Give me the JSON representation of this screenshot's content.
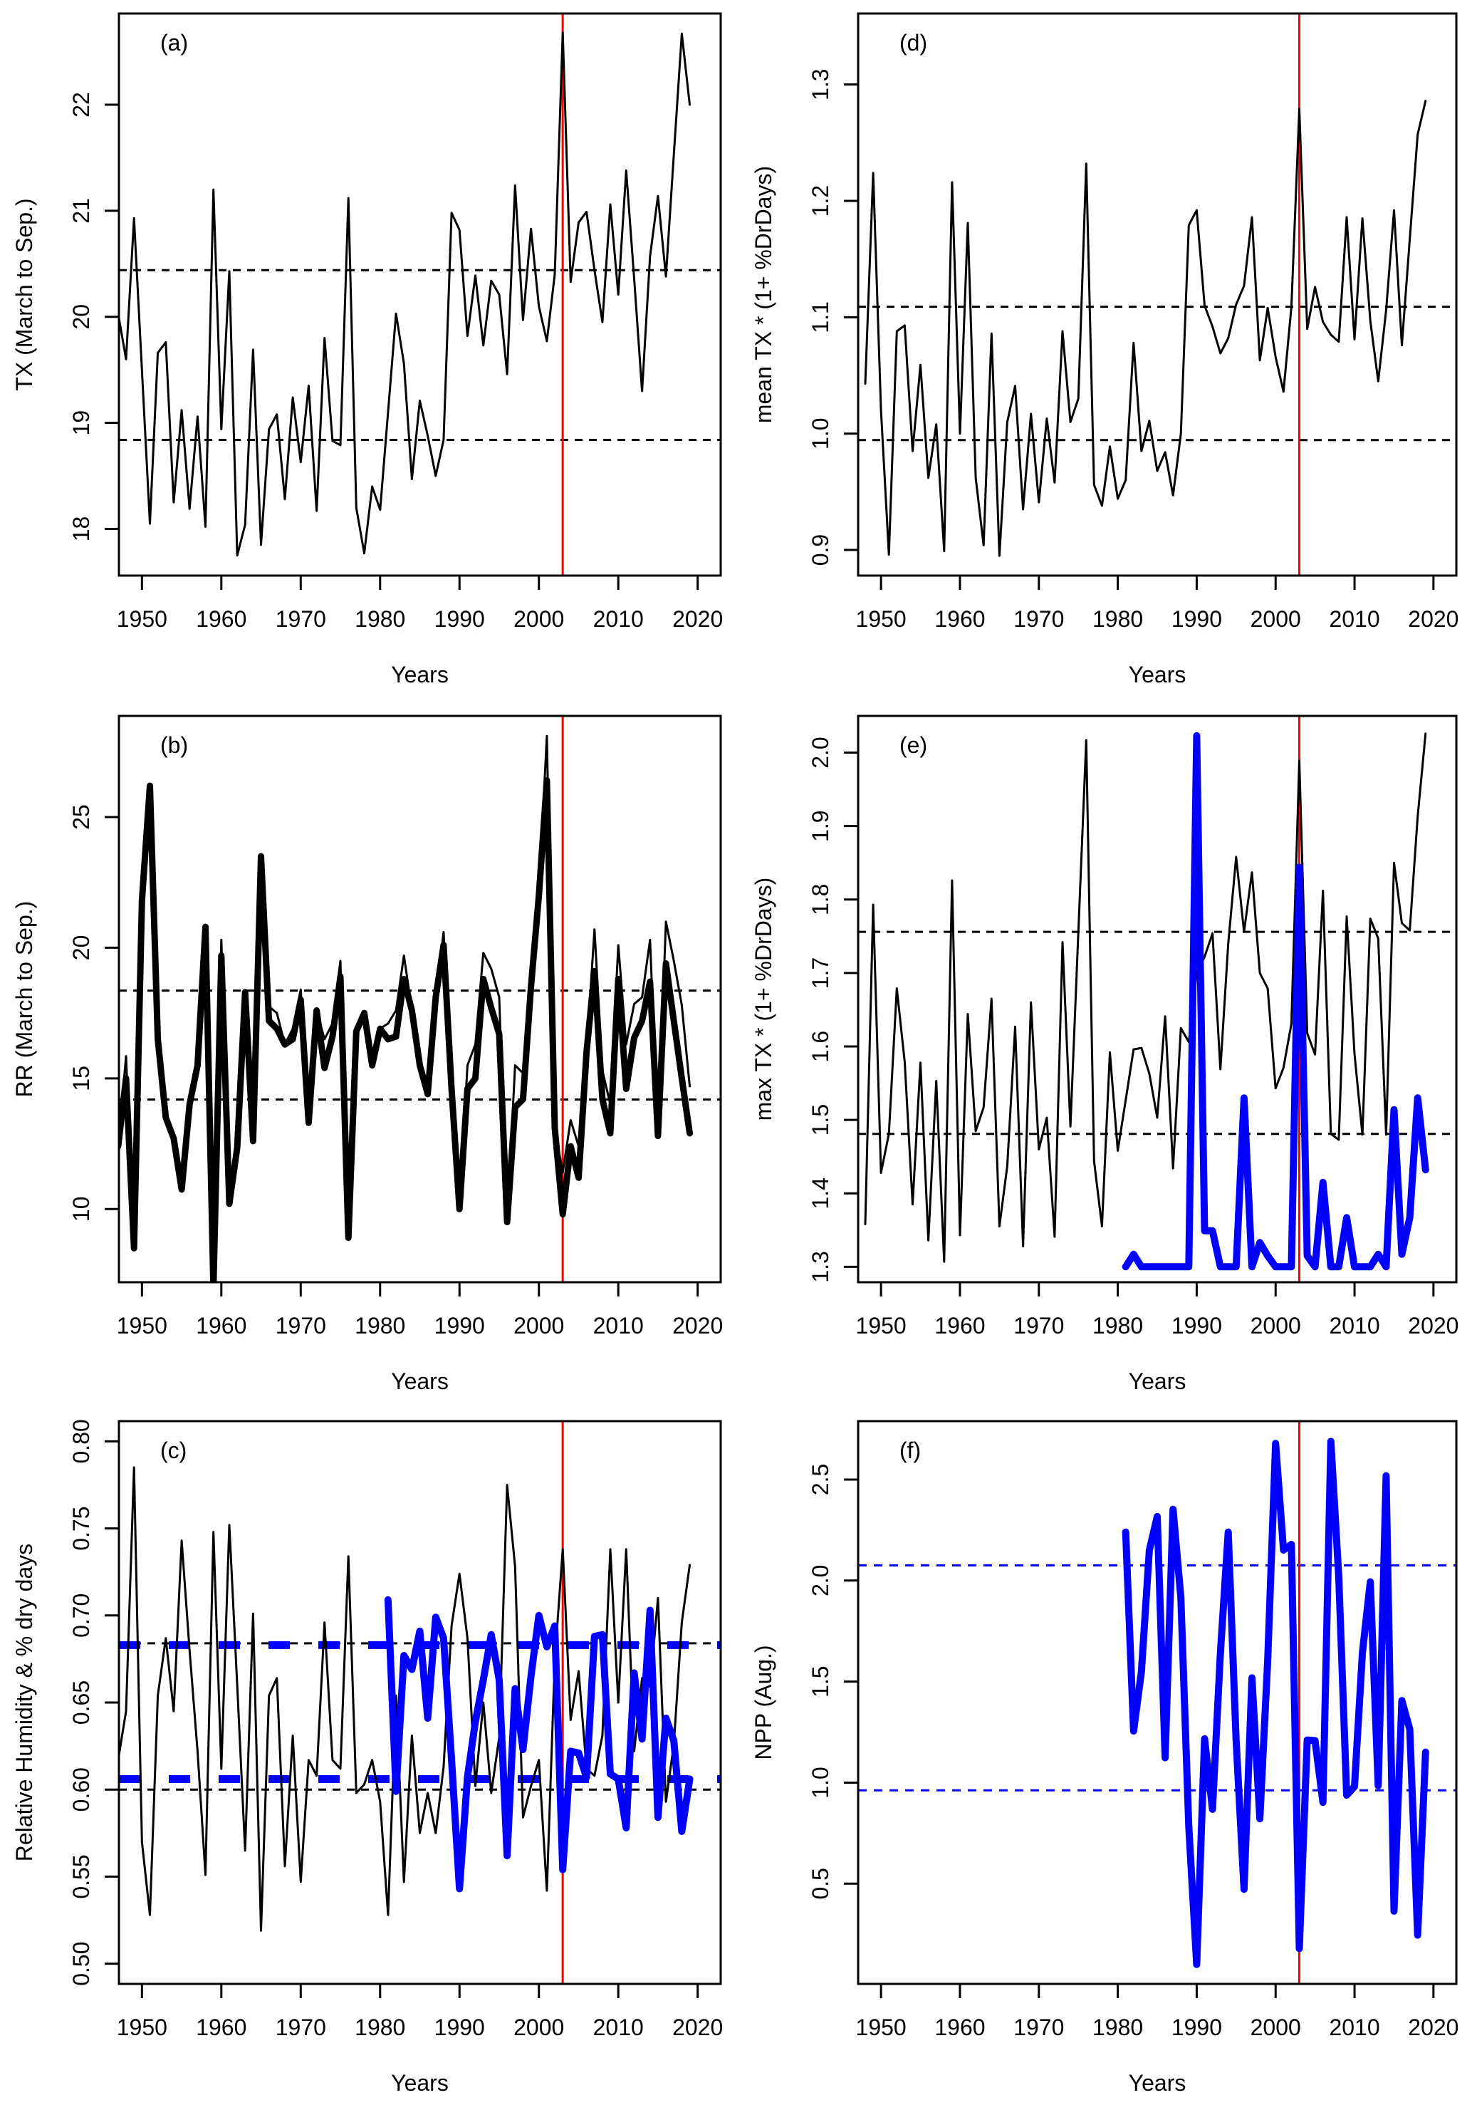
{
  "chart_data": [
    {
      "type": "line",
      "panel_label": "(a)",
      "xlabel": "Years",
      "ylabel": "TX (March to Sep.)",
      "xlim": [
        1947.1,
        2022.9
      ],
      "ylim": [
        17.56,
        22.86
      ],
      "xticks": [
        "1950",
        "1960",
        "1970",
        "1980",
        "1990",
        "2000",
        "2010",
        "2020"
      ],
      "yticks": [
        "18",
        "19",
        "20",
        "21",
        "22"
      ],
      "grid": false,
      "vline": {
        "x": 2003,
        "color": "#ff0000"
      },
      "hlines": [
        {
          "y": 20.44,
          "color": "#000000",
          "style": "dashed"
        },
        {
          "y": 18.84,
          "color": "#000000",
          "style": "dashed"
        }
      ],
      "series": [
        {
          "color": "#000000",
          "style": "thin",
          "x_start": 1947,
          "values": [
            20.03,
            19.6,
            20.93,
            19.5,
            18.05,
            19.66,
            19.76,
            18.25,
            19.12,
            18.19,
            19.06,
            18.02,
            21.2,
            18.94,
            20.43,
            17.75,
            18.04,
            19.69,
            17.85,
            18.94,
            19.08,
            18.28,
            19.24,
            18.63,
            19.35,
            18.17,
            19.8,
            18.83,
            18.79,
            21.12,
            18.2,
            17.77,
            18.4,
            18.18,
            19.1,
            20.03,
            19.56,
            18.47,
            19.21,
            18.88,
            18.5,
            18.84,
            20.98,
            20.82,
            19.82,
            20.39,
            19.73,
            20.34,
            20.21,
            19.46,
            21.24,
            19.97,
            20.83,
            20.1,
            19.77,
            20.4,
            22.68,
            20.33,
            20.89,
            20.99,
            20.44,
            19.95,
            21.06,
            20.21,
            21.38,
            20.36,
            19.3,
            20.57,
            21.14,
            20.38,
            21.53,
            22.67,
            22.0
          ]
        }
      ]
    },
    {
      "type": "line",
      "panel_label": "(b)",
      "xlabel": "Years",
      "ylabel": "RR (March to Sep.)",
      "xlim": [
        1947.1,
        2022.9
      ],
      "ylim": [
        7.2,
        28.87
      ],
      "xticks": [
        "1950",
        "1960",
        "1970",
        "1980",
        "1990",
        "2000",
        "2010",
        "2020"
      ],
      "yticks": [
        "10",
        "15",
        "20",
        "25"
      ],
      "grid": false,
      "vline": {
        "x": 2003,
        "color": "#ff0000"
      },
      "hlines": [
        {
          "y": 18.36,
          "color": "#000000",
          "style": "dashed"
        },
        {
          "y": 14.19,
          "color": "#000000",
          "style": "dashed"
        }
      ],
      "series": [
        {
          "color": "#000000",
          "style": "thin",
          "x_start": 1947,
          "values": [
            12.4,
            15.85,
            8.5,
            21.8,
            26.2,
            16.5,
            13.5,
            12.7,
            10.75,
            14.0,
            15.5,
            20.8,
            7.0,
            20.3,
            10.2,
            12.35,
            18.3,
            12.6,
            23.5,
            17.75,
            17.5,
            16.3,
            16.9,
            18.4,
            13.3,
            17.6,
            16.5,
            17.1,
            19.5,
            8.9,
            16.8,
            17.5,
            15.5,
            16.9,
            17.1,
            17.6,
            19.7,
            17.6,
            15.5,
            14.4,
            18.1,
            20.6,
            14.6,
            10.0,
            15.5,
            16.3,
            19.8,
            19.2,
            18.1,
            9.5,
            15.5,
            15.2,
            18.5,
            22.0,
            28.1,
            13.1,
            11.4,
            13.4,
            12.4,
            16.0,
            20.7,
            15.3,
            14.0,
            20.1,
            16.3,
            17.85,
            18.1,
            20.3,
            12.8,
            21.0,
            19.5,
            17.8,
            14.7
          ]
        },
        {
          "color": "#000000",
          "style": "thick",
          "x_start": 1947,
          "values": [
            12.4,
            15.0,
            8.5,
            21.8,
            26.2,
            16.5,
            13.5,
            12.7,
            10.75,
            14.0,
            15.5,
            20.8,
            7.0,
            19.7,
            10.2,
            12.35,
            18.3,
            12.6,
            23.5,
            17.2,
            16.9,
            16.3,
            16.5,
            18.0,
            13.3,
            17.6,
            15.4,
            16.6,
            18.9,
            8.9,
            16.8,
            17.5,
            15.5,
            16.9,
            16.5,
            16.6,
            18.8,
            17.6,
            15.5,
            14.4,
            18.1,
            20.1,
            14.6,
            10.0,
            14.6,
            15.0,
            18.8,
            17.7,
            16.7,
            9.5,
            13.9,
            14.2,
            18.5,
            22.0,
            26.4,
            13.1,
            9.8,
            12.4,
            11.2,
            16.0,
            19.1,
            14.2,
            12.9,
            18.8,
            14.6,
            16.55,
            17.2,
            18.7,
            12.8,
            19.4,
            17.2,
            15.0,
            12.9
          ]
        }
      ]
    },
    {
      "type": "line",
      "panel_label": "(c)",
      "xlabel": "Years",
      "ylabel": "Relative Humidity & % dry days",
      "xlim": [
        1947.1,
        2022.9
      ],
      "ylim": [
        0.4884,
        0.8116
      ],
      "xticks": [
        "1950",
        "1960",
        "1970",
        "1980",
        "1990",
        "2000",
        "2010",
        "2020"
      ],
      "yticks": [
        "0.50",
        "0.55",
        "0.60",
        "0.65",
        "0.70",
        "0.75",
        "0.80"
      ],
      "grid": false,
      "vline": {
        "x": 2003,
        "color": "#ff0000"
      },
      "hlines": [
        {
          "y": 0.684,
          "color": "#000000",
          "style": "dashed"
        },
        {
          "y": 0.6,
          "color": "#000000",
          "style": "dashed"
        },
        {
          "y": 0.683,
          "color": "#0000ff",
          "style": "dashed-thick"
        },
        {
          "y": 0.606,
          "color": "#0000ff",
          "style": "dashed-thick"
        }
      ],
      "series": [
        {
          "color": "#000000",
          "style": "thin",
          "x_start": 1947,
          "values": [
            0.617,
            0.645,
            0.785,
            0.57,
            0.528,
            0.654,
            0.687,
            0.645,
            0.743,
            0.68,
            0.622,
            0.551,
            0.748,
            0.612,
            0.752,
            0.66,
            0.565,
            0.701,
            0.519,
            0.654,
            0.664,
            0.556,
            0.631,
            0.547,
            0.617,
            0.608,
            0.696,
            0.617,
            0.612,
            0.734,
            0.598,
            0.603,
            0.617,
            0.593,
            0.528,
            0.654,
            0.547,
            0.631,
            0.575,
            0.598,
            0.575,
            0.613,
            0.694,
            0.724,
            0.687,
            0.602,
            0.65,
            0.598,
            0.63,
            0.775,
            0.728,
            0.584,
            0.602,
            0.617,
            0.542,
            0.674,
            0.738,
            0.64,
            0.668,
            0.612,
            0.608,
            0.631,
            0.738,
            0.65,
            0.738,
            0.622,
            0.664,
            0.659,
            0.71,
            0.593,
            0.626,
            0.696,
            0.729
          ]
        },
        {
          "color": "#0000ff",
          "style": "thick",
          "x_start": 1981,
          "values": [
            0.709,
            0.599,
            0.677,
            0.669,
            0.691,
            0.641,
            0.699,
            0.687,
            0.617,
            0.543,
            0.607,
            0.639,
            0.663,
            0.689,
            0.663,
            0.562,
            0.658,
            0.623,
            0.665,
            0.7,
            0.682,
            0.694,
            0.554,
            0.622,
            0.621,
            0.607,
            0.688,
            0.689,
            0.609,
            0.606,
            0.578,
            0.667,
            0.629,
            0.703,
            0.584,
            0.641,
            0.628,
            0.576,
            0.606
          ]
        }
      ]
    },
    {
      "type": "line",
      "panel_label": "(d)",
      "xlabel": "Years",
      "ylabel": "mean TX * (1+ %DrDays)",
      "xlim": [
        1947.1,
        2022.9
      ],
      "ylim": [
        0.878,
        1.361
      ],
      "xticks": [
        "1950",
        "1960",
        "1970",
        "1980",
        "1990",
        "2000",
        "2010",
        "2020"
      ],
      "yticks": [
        "0.9",
        "1.0",
        "1.1",
        "1.2",
        "1.3"
      ],
      "grid": false,
      "vline": {
        "x": 2003,
        "color": "#ff0000"
      },
      "hlines": [
        {
          "y": 1.109,
          "color": "#000000",
          "style": "dashed"
        },
        {
          "y": 0.9945,
          "color": "#000000",
          "style": "dashed"
        }
      ],
      "series": [
        {
          "color": "#000000",
          "style": "thin",
          "x_start": 1948,
          "values": [
            1.043,
            1.224,
            1.02,
            0.896,
            1.088,
            1.093,
            0.985,
            1.059,
            0.962,
            1.008,
            0.899,
            1.216,
            1.0,
            1.181,
            0.962,
            0.904,
            1.086,
            0.895,
            1.01,
            1.041,
            0.935,
            1.017,
            0.941,
            1.013,
            0.958,
            1.088,
            1.01,
            1.03,
            1.232,
            0.956,
            0.938,
            0.989,
            0.944,
            0.96,
            1.078,
            0.985,
            1.011,
            0.968,
            0.984,
            0.947,
            1.0,
            1.179,
            1.192,
            1.11,
            1.092,
            1.069,
            1.082,
            1.111,
            1.127,
            1.186,
            1.063,
            1.108,
            1.066,
            1.036,
            1.109,
            1.279,
            1.09,
            1.126,
            1.096,
            1.085,
            1.079,
            1.186,
            1.081,
            1.185,
            1.097,
            1.045,
            1.106,
            1.192,
            1.076,
            1.167,
            1.257,
            1.286
          ]
        }
      ]
    },
    {
      "type": "line",
      "panel_label": "(e)",
      "xlabel": "Years",
      "ylabel": "max TX * (1+ %DrDays)",
      "xlim": [
        1947.1,
        2022.9
      ],
      "ylim": [
        1.279,
        2.05
      ],
      "xticks": [
        "1950",
        "1960",
        "1970",
        "1980",
        "1990",
        "2000",
        "2010",
        "2020"
      ],
      "yticks": [
        "1.3",
        "1.4",
        "1.5",
        "1.6",
        "1.7",
        "1.8",
        "1.9",
        "2.0"
      ],
      "grid": false,
      "vline": {
        "x": 2003,
        "color": "#ff0000"
      },
      "hlines": [
        {
          "y": 1.756,
          "color": "#000000",
          "style": "dashed"
        },
        {
          "y": 1.481,
          "color": "#000000",
          "style": "dashed"
        }
      ],
      "series": [
        {
          "color": "#000000",
          "style": "thin",
          "x_start": 1948,
          "values": [
            1.358,
            1.793,
            1.428,
            1.481,
            1.679,
            1.579,
            1.385,
            1.578,
            1.336,
            1.553,
            1.307,
            1.826,
            1.343,
            1.644,
            1.485,
            1.517,
            1.665,
            1.355,
            1.437,
            1.627,
            1.328,
            1.66,
            1.46,
            1.503,
            1.341,
            1.742,
            1.491,
            1.755,
            2.017,
            1.444,
            1.355,
            1.592,
            1.458,
            1.527,
            1.596,
            1.598,
            1.563,
            1.503,
            1.641,
            1.434,
            1.625,
            1.606,
            1.7,
            1.722,
            1.754,
            1.569,
            1.74,
            1.858,
            1.756,
            1.837,
            1.7,
            1.679,
            1.543,
            1.571,
            1.631,
            1.989,
            1.618,
            1.589,
            1.812,
            1.481,
            1.473,
            1.777,
            1.59,
            1.48,
            1.774,
            1.747,
            1.48,
            1.85,
            1.768,
            1.758,
            1.913,
            2.026
          ]
        },
        {
          "color": "#0000ff",
          "style": "thick",
          "x_start": 1981,
          "values": [
            1.3,
            1.317,
            1.3,
            1.3,
            1.3,
            1.3,
            1.3,
            1.3,
            1.3,
            2.023,
            1.349,
            1.349,
            1.3,
            1.3,
            1.3,
            1.53,
            1.3,
            1.333,
            1.315,
            1.3,
            1.3,
            1.3,
            1.844,
            1.315,
            1.3,
            1.415,
            1.3,
            1.3,
            1.367,
            1.3,
            1.3,
            1.3,
            1.317,
            1.3,
            1.514,
            1.317,
            1.367,
            1.53,
            1.432
          ]
        }
      ]
    },
    {
      "type": "line",
      "panel_label": "(f)",
      "xlabel": "Years",
      "ylabel": "NPP (Aug.)",
      "xlim": [
        1947.1,
        2022.9
      ],
      "ylim": [
        0.004,
        2.789
      ],
      "xticks": [
        "1950",
        "1960",
        "1970",
        "1980",
        "1990",
        "2000",
        "2010",
        "2020"
      ],
      "yticks": [
        "0.5",
        "1.0",
        "1.5",
        "2.0",
        "2.5"
      ],
      "grid": false,
      "vline": {
        "x": 2003,
        "color": "#ff0000"
      },
      "hlines": [
        {
          "y": 2.075,
          "color": "#0000ff",
          "style": "dashed"
        },
        {
          "y": 0.962,
          "color": "#0000ff",
          "style": "dashed"
        }
      ],
      "series": [
        {
          "color": "#0000ff",
          "style": "thick",
          "x_start": 1981,
          "values": [
            2.24,
            1.255,
            1.55,
            2.15,
            2.317,
            1.123,
            2.353,
            1.915,
            0.783,
            0.1,
            1.217,
            0.868,
            1.642,
            2.24,
            1.208,
            0.472,
            1.519,
            0.821,
            1.604,
            2.679,
            2.151,
            2.179,
            0.179,
            1.211,
            1.208,
            0.902,
            2.689,
            2.019,
            0.938,
            0.981,
            1.642,
            1.994,
            0.985,
            2.519,
            0.364,
            1.406,
            1.264,
            0.245,
            1.151
          ]
        }
      ]
    }
  ]
}
